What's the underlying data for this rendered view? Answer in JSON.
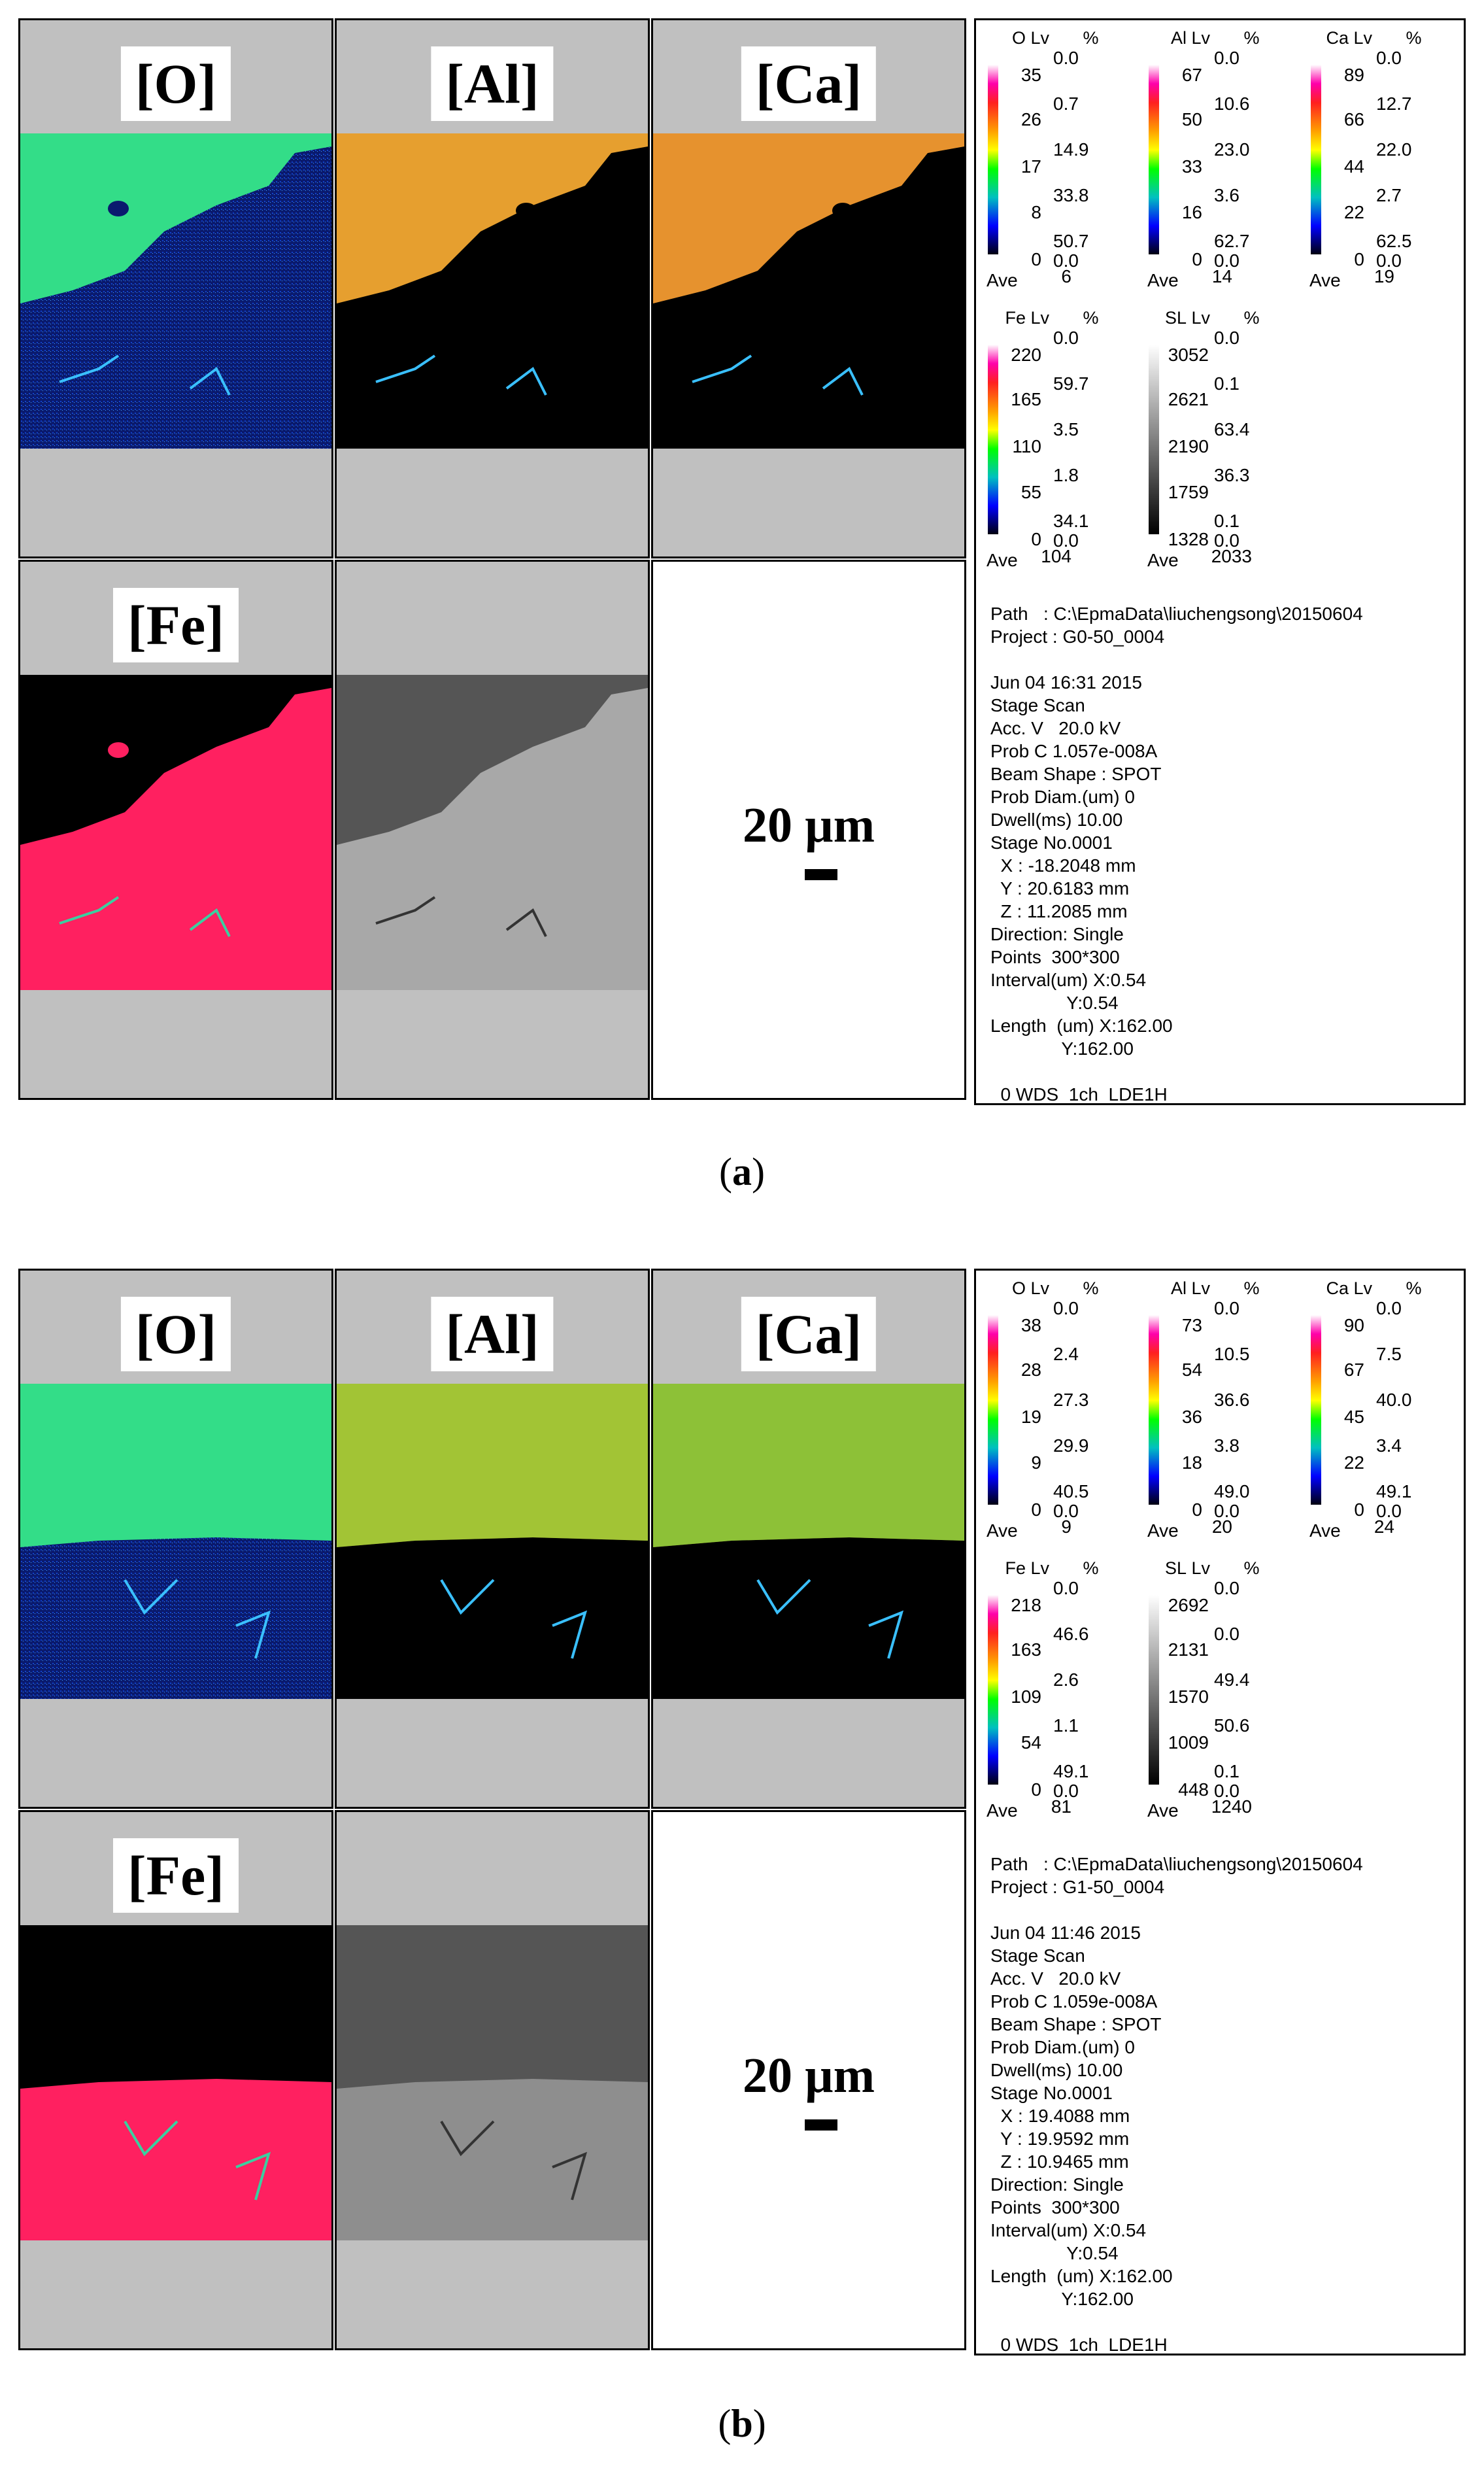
{
  "figures": [
    {
      "caption_letter": "a",
      "labels": [
        "[O]",
        "[Al]",
        "[Ca]",
        "[Fe]"
      ],
      "scale": "20 µm",
      "legends": {
        "O": {
          "el": "O",
          "lv": "Lv",
          "pc": "%",
          "levels": [
            "35",
            "26",
            "17",
            "8",
            "0"
          ],
          "percents": [
            "0.0",
            "0.7",
            "14.9",
            "33.8",
            "50.7",
            "0.0"
          ],
          "ave": "6"
        },
        "Al": {
          "el": "Al",
          "lv": "Lv",
          "pc": "%",
          "levels": [
            "67",
            "50",
            "33",
            "16",
            "0"
          ],
          "percents": [
            "0.0",
            "10.6",
            "23.0",
            "3.6",
            "62.7",
            "0.0"
          ],
          "ave": "14"
        },
        "Ca": {
          "el": "Ca",
          "lv": "Lv",
          "pc": "%",
          "levels": [
            "89",
            "66",
            "44",
            "22",
            "0"
          ],
          "percents": [
            "0.0",
            "12.7",
            "22.0",
            "2.7",
            "62.5",
            "0.0"
          ],
          "ave": "19"
        },
        "Fe": {
          "el": "Fe",
          "lv": "Lv",
          "pc": "%",
          "levels": [
            "220",
            "165",
            "110",
            "55",
            "0"
          ],
          "percents": [
            "0.0",
            "59.7",
            "3.5",
            "1.8",
            "34.1",
            "0.0"
          ],
          "ave": "104"
        },
        "SL": {
          "el": "SL",
          "lv": "Lv",
          "pc": "%",
          "levels": [
            "3052",
            "2621",
            "2190",
            "1759",
            "1328"
          ],
          "percents": [
            "0.0",
            "0.1",
            "63.4",
            "36.3",
            "0.1",
            "0.0"
          ],
          "ave": "2033"
        }
      },
      "meta": "Path   : C:\\EpmaData\\liuchengsong\\20150604\nProject : G0-50_0004\n\nJun 04 16:31 2015\nStage Scan\nAcc. V   20.0 kV\nProb C 1.057e-008A\nBeam Shape : SPOT\nProb Diam.(um) 0\nDwell(ms) 10.00\nStage No.0001\n  X : -18.2048 mm\n  Y : 20.6183 mm\n  Z : 11.2085 mm\nDirection: Single\nPoints  300*300\nInterval(um) X:0.54\n               Y:0.54\nLength  (um) X:162.00\n              Y:162.00\n\n  0 WDS  1ch  LDE1H"
    },
    {
      "caption_letter": "b",
      "labels": [
        "[O]",
        "[Al]",
        "[Ca]",
        "[Fe]"
      ],
      "scale": "20 µm",
      "legends": {
        "O": {
          "el": "O",
          "lv": "Lv",
          "pc": "%",
          "levels": [
            "38",
            "28",
            "19",
            "9",
            "0"
          ],
          "percents": [
            "0.0",
            "2.4",
            "27.3",
            "29.9",
            "40.5",
            "0.0"
          ],
          "ave": "9"
        },
        "Al": {
          "el": "Al",
          "lv": "Lv",
          "pc": "%",
          "levels": [
            "73",
            "54",
            "36",
            "18",
            "0"
          ],
          "percents": [
            "0.0",
            "10.5",
            "36.6",
            "3.8",
            "49.0",
            "0.0"
          ],
          "ave": "20"
        },
        "Ca": {
          "el": "Ca",
          "lv": "Lv",
          "pc": "%",
          "levels": [
            "90",
            "67",
            "45",
            "22",
            "0"
          ],
          "percents": [
            "0.0",
            "7.5",
            "40.0",
            "3.4",
            "49.1",
            "0.0"
          ],
          "ave": "24"
        },
        "Fe": {
          "el": "Fe",
          "lv": "Lv",
          "pc": "%",
          "levels": [
            "218",
            "163",
            "109",
            "54",
            "0"
          ],
          "percents": [
            "0.0",
            "46.6",
            "2.6",
            "1.1",
            "49.1",
            "0.0"
          ],
          "ave": "81"
        },
        "SL": {
          "el": "SL",
          "lv": "Lv",
          "pc": "%",
          "levels": [
            "2692",
            "2131",
            "1570",
            "1009",
            "448"
          ],
          "percents": [
            "0.0",
            "0.0",
            "49.4",
            "50.6",
            "0.1",
            "0.0"
          ],
          "ave": "1240"
        }
      },
      "meta": "Path   : C:\\EpmaData\\liuchengsong\\20150604\nProject : G1-50_0004\n\nJun 04 11:46 2015\nStage Scan\nAcc. V   20.0 kV\nProb C 1.059e-008A\nBeam Shape : SPOT\nProb Diam.(um) 0\nDwell(ms) 10.00\nStage No.0001\n  X : 19.4088 mm\n  Y : 19.9592 mm\n  Z : 10.9465 mm\nDirection: Single\nPoints  300*300\nInterval(um) X:0.54\n               Y:0.54\nLength  (um) X:162.00\n              Y:162.00\n\n  0 WDS  1ch  LDE1H"
    }
  ],
  "legend_ave_label": "Ave",
  "colors": {
    "panel_gray": "#c0c0c0",
    "o_top": "#33dd88",
    "o_bottom": "#0a1a6e",
    "al_top": "#e8c030",
    "ca_top": "#e8b830",
    "fe_bottom": "#ff2060",
    "map_black": "#000000"
  }
}
